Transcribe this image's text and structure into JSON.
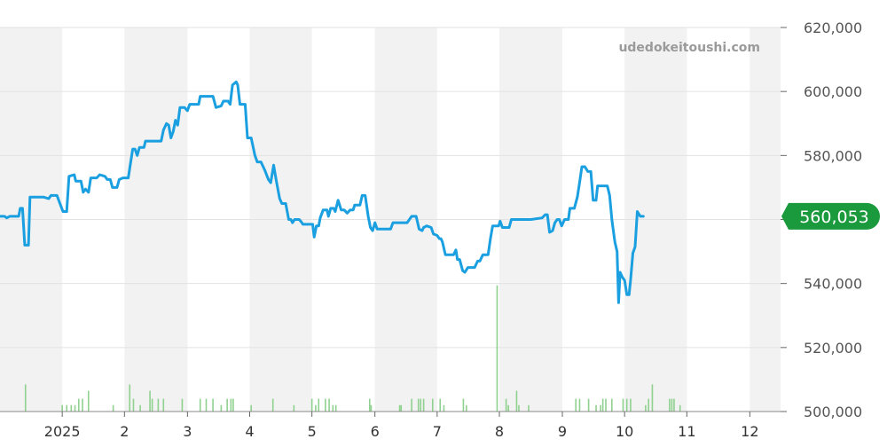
{
  "chart_data": {
    "type": "line",
    "watermark": "udedokeitoushi.com",
    "current_value_label": "560,053",
    "colors": {
      "line": "#1a9fe0",
      "volume": "#8fd18f",
      "badge": "#1a9a3c",
      "band": "#f2f2f2",
      "grid": "#e2e2e2"
    },
    "ylim": [
      500000,
      620000
    ],
    "y_ticks": [
      {
        "value": 500000,
        "label": "500,000"
      },
      {
        "value": 520000,
        "label": "520,000"
      },
      {
        "value": 540000,
        "label": "540,000"
      },
      {
        "value": 560000,
        "label": "560,000"
      },
      {
        "value": 580000,
        "label": "580,000"
      },
      {
        "value": 600000,
        "label": "600,000"
      },
      {
        "value": 620000,
        "label": "620,000"
      }
    ],
    "xlim": [
      2024.917,
      2025.958
    ],
    "x_ticks": [
      {
        "value": 2025.0,
        "label": "2025"
      },
      {
        "value": 2025.083,
        "label": "2"
      },
      {
        "value": 2025.167,
        "label": "3"
      },
      {
        "value": 2025.25,
        "label": "4"
      },
      {
        "value": 2025.333,
        "label": "5"
      },
      {
        "value": 2025.417,
        "label": "6"
      },
      {
        "value": 2025.5,
        "label": "7"
      },
      {
        "value": 2025.583,
        "label": "8"
      },
      {
        "value": 2025.667,
        "label": "9"
      },
      {
        "value": 2025.75,
        "label": "10"
      },
      {
        "value": 2025.833,
        "label": "11"
      },
      {
        "value": 2025.917,
        "label": "12"
      }
    ],
    "month_bands": [
      [
        2024.917,
        2025.0
      ],
      [
        2025.083,
        2025.167
      ],
      [
        2025.25,
        2025.333
      ],
      [
        2025.417,
        2025.5
      ],
      [
        2025.583,
        2025.667
      ],
      [
        2025.75,
        2025.833
      ],
      [
        2025.917,
        2025.958
      ]
    ],
    "series": [
      {
        "values": [
          [
            2024.917,
            561000
          ],
          [
            2024.923,
            561000
          ],
          [
            2024.926,
            560500
          ],
          [
            2024.93,
            561000
          ],
          [
            2024.935,
            561000
          ],
          [
            2024.942,
            561000
          ],
          [
            2024.944,
            563500
          ],
          [
            2024.947,
            563500
          ],
          [
            2024.95,
            552000
          ],
          [
            2024.955,
            552000
          ],
          [
            2024.957,
            567000
          ],
          [
            2024.968,
            567000
          ],
          [
            2024.975,
            567000
          ],
          [
            2024.982,
            566500
          ],
          [
            2024.985,
            567500
          ],
          [
            2024.993,
            567500
          ],
          [
            2024.997,
            565000
          ],
          [
            2025.001,
            562500
          ],
          [
            2025.006,
            562500
          ],
          [
            2025.009,
            573500
          ],
          [
            2025.016,
            574000
          ],
          [
            2025.018,
            572000
          ],
          [
            2025.025,
            572000
          ],
          [
            2025.028,
            568500
          ],
          [
            2025.031,
            569500
          ],
          [
            2025.035,
            568500
          ],
          [
            2025.038,
            573000
          ],
          [
            2025.046,
            573000
          ],
          [
            2025.05,
            574000
          ],
          [
            2025.057,
            573500
          ],
          [
            2025.06,
            572500
          ],
          [
            2025.064,
            572500
          ],
          [
            2025.067,
            570000
          ],
          [
            2025.073,
            570000
          ],
          [
            2025.076,
            572500
          ],
          [
            2025.081,
            573000
          ],
          [
            2025.088,
            573000
          ],
          [
            2025.094,
            582000
          ],
          [
            2025.097,
            582000
          ],
          [
            2025.1,
            580000
          ],
          [
            2025.103,
            582500
          ],
          [
            2025.109,
            582500
          ],
          [
            2025.111,
            584500
          ],
          [
            2025.118,
            584500
          ],
          [
            2025.125,
            584500
          ],
          [
            2025.132,
            584500
          ],
          [
            2025.135,
            588000
          ],
          [
            2025.139,
            590000
          ],
          [
            2025.142,
            589500
          ],
          [
            2025.145,
            585500
          ],
          [
            2025.148,
            587500
          ],
          [
            2025.151,
            591000
          ],
          [
            2025.154,
            589500
          ],
          [
            2025.157,
            595000
          ],
          [
            2025.163,
            595000
          ],
          [
            2025.167,
            594000
          ],
          [
            2025.17,
            596000
          ],
          [
            2025.182,
            596000
          ],
          [
            2025.184,
            598500
          ],
          [
            2025.196,
            598500
          ],
          [
            2025.201,
            598500
          ],
          [
            2025.205,
            595000
          ],
          [
            2025.212,
            595500
          ],
          [
            2025.215,
            597000
          ],
          [
            2025.221,
            597000
          ],
          [
            2025.224,
            596000
          ],
          [
            2025.227,
            602000
          ],
          [
            2025.232,
            603000
          ],
          [
            2025.234,
            602000
          ],
          [
            2025.237,
            596000
          ],
          [
            2025.244,
            596000
          ],
          [
            2025.247,
            585500
          ],
          [
            2025.252,
            585500
          ],
          [
            2025.257,
            580000
          ],
          [
            2025.26,
            578000
          ],
          [
            2025.265,
            578000
          ],
          [
            2025.27,
            575500
          ],
          [
            2025.275,
            572500
          ],
          [
            2025.278,
            571500
          ],
          [
            2025.282,
            577000
          ],
          [
            2025.286,
            571500
          ],
          [
            2025.29,
            566500
          ],
          [
            2025.293,
            565000
          ],
          [
            2025.298,
            565000
          ],
          [
            2025.302,
            560000
          ],
          [
            2025.305,
            560000
          ],
          [
            2025.307,
            559000
          ],
          [
            2025.31,
            560000
          ],
          [
            2025.316,
            560000
          ],
          [
            2025.318,
            559500
          ],
          [
            2025.321,
            558500
          ],
          [
            2025.327,
            558500
          ],
          [
            2025.334,
            558500
          ],
          [
            2025.336,
            554500
          ],
          [
            2025.339,
            558000
          ],
          [
            2025.342,
            558000
          ],
          [
            2025.344,
            560500
          ],
          [
            2025.348,
            563000
          ],
          [
            2025.353,
            563000
          ],
          [
            2025.355,
            561000
          ],
          [
            2025.358,
            563500
          ],
          [
            2025.362,
            563500
          ],
          [
            2025.364,
            562500
          ],
          [
            2025.368,
            566000
          ],
          [
            2025.372,
            563000
          ],
          [
            2025.376,
            563000
          ],
          [
            2025.38,
            562000
          ],
          [
            2025.384,
            563000
          ],
          [
            2025.388,
            563000
          ],
          [
            2025.39,
            564500
          ],
          [
            2025.397,
            564500
          ],
          [
            2025.4,
            567500
          ],
          [
            2025.404,
            567500
          ],
          [
            2025.408,
            561000
          ],
          [
            2025.411,
            557500
          ],
          [
            2025.414,
            556500
          ],
          [
            2025.417,
            559000
          ],
          [
            2025.42,
            557000
          ],
          [
            2025.432,
            557000
          ],
          [
            2025.438,
            557000
          ],
          [
            2025.441,
            559000
          ],
          [
            2025.446,
            559000
          ],
          [
            2025.45,
            559000
          ],
          [
            2025.456,
            559000
          ],
          [
            2025.46,
            559000
          ],
          [
            2025.466,
            561000
          ],
          [
            2025.472,
            561000
          ],
          [
            2025.476,
            557000
          ],
          [
            2025.48,
            556500
          ],
          [
            2025.482,
            557500
          ],
          [
            2025.486,
            558000
          ],
          [
            2025.492,
            557500
          ],
          [
            2025.495,
            555500
          ],
          [
            2025.5,
            555000
          ],
          [
            2025.503,
            554000
          ],
          [
            2025.505,
            554000
          ],
          [
            2025.507,
            553000
          ],
          [
            2025.511,
            549000
          ],
          [
            2025.522,
            549000
          ],
          [
            2025.525,
            550500
          ],
          [
            2025.527,
            547500
          ],
          [
            2025.53,
            547500
          ],
          [
            2025.534,
            544000
          ],
          [
            2025.537,
            543500
          ],
          [
            2025.541,
            545000
          ],
          [
            2025.55,
            545000
          ],
          [
            2025.554,
            547000
          ],
          [
            2025.557,
            547000
          ],
          [
            2025.561,
            549000
          ],
          [
            2025.565,
            549000
          ],
          [
            2025.568,
            549000
          ],
          [
            2025.571,
            554000
          ],
          [
            2025.574,
            558000
          ],
          [
            2025.582,
            558000
          ],
          [
            2025.584,
            559500
          ],
          [
            2025.587,
            557500
          ],
          [
            2025.596,
            557500
          ],
          [
            2025.599,
            560000
          ],
          [
            2025.625,
            560000
          ],
          [
            2025.64,
            560500
          ],
          [
            2025.644,
            561500
          ],
          [
            2025.647,
            561500
          ],
          [
            2025.65,
            556000
          ],
          [
            2025.654,
            556500
          ],
          [
            2025.657,
            559000
          ],
          [
            2025.66,
            560000
          ],
          [
            2025.663,
            560000
          ],
          [
            2025.666,
            558000
          ],
          [
            2025.67,
            560000
          ],
          [
            2025.675,
            560000
          ],
          [
            2025.677,
            563500
          ],
          [
            2025.683,
            563500
          ],
          [
            2025.687,
            567000
          ],
          [
            2025.69,
            571500
          ],
          [
            2025.693,
            576500
          ],
          [
            2025.697,
            576500
          ],
          [
            2025.701,
            575000
          ],
          [
            2025.705,
            575000
          ],
          [
            2025.708,
            566000
          ],
          [
            2025.712,
            566000
          ],
          [
            2025.714,
            570500
          ],
          [
            2025.72,
            570500
          ],
          [
            2025.727,
            570500
          ],
          [
            2025.73,
            567500
          ],
          [
            2025.733,
            560000
          ],
          [
            2025.737,
            553000
          ],
          [
            2025.74,
            550000
          ],
          [
            2025.742,
            534000
          ],
          [
            2025.744,
            543500
          ],
          [
            2025.747,
            542000
          ],
          [
            2025.75,
            541000
          ],
          [
            2025.753,
            536500
          ],
          [
            2025.756,
            536500
          ],
          [
            2025.758,
            541000
          ],
          [
            2025.761,
            549500
          ],
          [
            2025.764,
            551500
          ],
          [
            2025.767,
            562500
          ],
          [
            2025.771,
            561000
          ],
          [
            2025.775,
            561000
          ]
        ]
      }
    ],
    "volume": [
      [
        2024.951,
        8.5
      ],
      [
        2025.0,
        2
      ],
      [
        2025.006,
        2
      ],
      [
        2025.012,
        2
      ],
      [
        2025.017,
        2
      ],
      [
        2025.022,
        4
      ],
      [
        2025.027,
        4
      ],
      [
        2025.035,
        6.5
      ],
      [
        2025.068,
        2
      ],
      [
        2025.09,
        8.5
      ],
      [
        2025.095,
        4
      ],
      [
        2025.104,
        2
      ],
      [
        2025.117,
        6.5
      ],
      [
        2025.12,
        4
      ],
      [
        2025.128,
        4
      ],
      [
        2025.135,
        4
      ],
      [
        2025.16,
        4
      ],
      [
        2025.184,
        4
      ],
      [
        2025.192,
        4
      ],
      [
        2025.201,
        4
      ],
      [
        2025.212,
        2
      ],
      [
        2025.22,
        4
      ],
      [
        2025.225,
        4
      ],
      [
        2025.228,
        4
      ],
      [
        2025.252,
        2
      ],
      [
        2025.281,
        4
      ],
      [
        2025.309,
        2
      ],
      [
        2025.333,
        4
      ],
      [
        2025.338,
        2
      ],
      [
        2025.342,
        4
      ],
      [
        2025.351,
        4
      ],
      [
        2025.356,
        4
      ],
      [
        2025.361,
        2
      ],
      [
        2025.365,
        2
      ],
      [
        2025.41,
        4
      ],
      [
        2025.412,
        2
      ],
      [
        2025.45,
        2
      ],
      [
        2025.452,
        2
      ],
      [
        2025.466,
        4
      ],
      [
        2025.475,
        4
      ],
      [
        2025.478,
        4
      ],
      [
        2025.482,
        4
      ],
      [
        2025.494,
        4
      ],
      [
        2025.504,
        4
      ],
      [
        2025.509,
        2
      ],
      [
        2025.535,
        4
      ],
      [
        2025.539,
        2
      ],
      [
        2025.58,
        39.5
      ],
      [
        2025.592,
        4
      ],
      [
        2025.595,
        2
      ],
      [
        2025.606,
        6.5
      ],
      [
        2025.609,
        2
      ],
      [
        2025.622,
        2
      ],
      [
        2025.685,
        4
      ],
      [
        2025.69,
        4
      ],
      [
        2025.702,
        4
      ],
      [
        2025.712,
        2
      ],
      [
        2025.718,
        2
      ],
      [
        2025.721,
        4
      ],
      [
        2025.725,
        4
      ],
      [
        2025.733,
        4
      ],
      [
        2025.748,
        4
      ],
      [
        2025.753,
        4
      ],
      [
        2025.758,
        4
      ],
      [
        2025.778,
        2
      ],
      [
        2025.782,
        4
      ],
      [
        2025.787,
        8.5
      ],
      [
        2025.81,
        4
      ],
      [
        2025.813,
        4
      ],
      [
        2025.816,
        4
      ],
      [
        2025.824,
        2
      ]
    ],
    "volume_max": 40
  }
}
